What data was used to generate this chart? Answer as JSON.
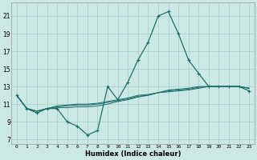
{
  "xlabel": "Humidex (Indice chaleur)",
  "bg_color": "#cce8e4",
  "grid_color": "#aaccca",
  "line_color": "#1a6e6a",
  "x_ticks": [
    0,
    1,
    2,
    3,
    4,
    5,
    6,
    7,
    8,
    9,
    10,
    11,
    12,
    13,
    14,
    15,
    16,
    17,
    18,
    19,
    20,
    21,
    22,
    23
  ],
  "y_ticks": [
    7,
    9,
    11,
    13,
    15,
    17,
    19,
    21
  ],
  "xlim": [
    -0.5,
    23.5
  ],
  "ylim": [
    6.5,
    22.5
  ],
  "series_main": [
    12.0,
    10.5,
    10.0,
    10.5,
    10.5,
    9.0,
    8.5,
    7.5,
    8.0,
    13.0,
    11.5,
    13.5,
    16.0,
    18.0,
    21.0,
    21.5,
    19.0,
    16.0,
    14.5,
    13.0,
    13.0,
    13.0,
    13.0,
    12.5
  ],
  "series_smooth": [
    [
      12.0,
      10.5,
      10.2,
      10.5,
      10.6,
      10.6,
      10.7,
      10.7,
      10.8,
      11.0,
      11.3,
      11.5,
      11.8,
      12.0,
      12.3,
      12.4,
      12.5,
      12.6,
      12.8,
      13.0,
      13.0,
      13.0,
      13.0,
      12.8
    ],
    [
      12.0,
      10.5,
      10.2,
      10.5,
      10.7,
      10.8,
      10.9,
      10.9,
      11.0,
      11.2,
      11.4,
      11.6,
      11.9,
      12.0,
      12.3,
      12.5,
      12.6,
      12.7,
      12.9,
      13.0,
      13.0,
      13.0,
      13.0,
      12.8
    ],
    [
      12.0,
      10.5,
      10.2,
      10.5,
      10.8,
      10.9,
      11.0,
      11.0,
      11.1,
      11.3,
      11.5,
      11.7,
      12.0,
      12.1,
      12.3,
      12.6,
      12.7,
      12.8,
      13.0,
      13.0,
      13.0,
      13.0,
      13.0,
      12.8
    ]
  ]
}
